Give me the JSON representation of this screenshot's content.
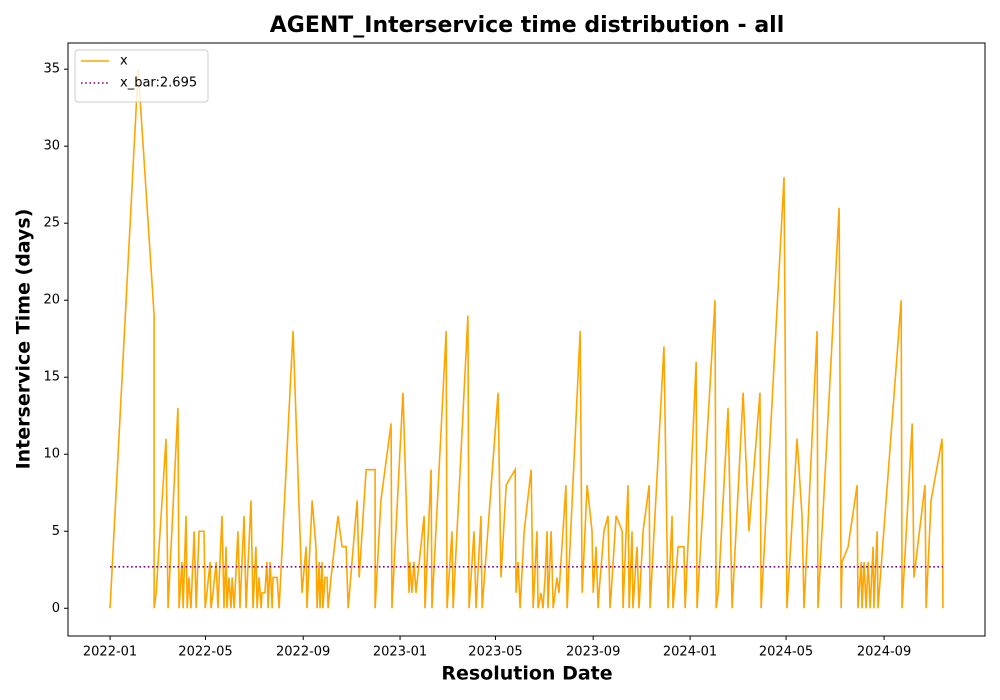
{
  "chart_data": {
    "type": "line",
    "title": "AGENT_Interservice time distribution - all",
    "x_label": "Resolution Date",
    "y_label": "Interservice Time (days)",
    "xlim": [
      2021.855,
      2025.017
    ],
    "ylim": [
      -1.8,
      36.7
    ],
    "xticks": [
      {
        "value": 2022.0,
        "label": "2022-01"
      },
      {
        "value": 2022.329,
        "label": "2022-05"
      },
      {
        "value": 2022.666,
        "label": "2022-09"
      },
      {
        "value": 2023.0,
        "label": "2023-01"
      },
      {
        "value": 2023.329,
        "label": "2023-05"
      },
      {
        "value": 2023.666,
        "label": "2023-09"
      },
      {
        "value": 2024.0,
        "label": "2024-01"
      },
      {
        "value": 2024.331,
        "label": "2024-05"
      },
      {
        "value": 2024.669,
        "label": "2024-09"
      }
    ],
    "yticks": [
      0,
      5,
      10,
      15,
      20,
      25,
      30,
      35
    ],
    "legend": "upper left",
    "series": [
      {
        "name": "x",
        "color": "#ffa500",
        "style": "solid",
        "x": [
          2022.0,
          2022.097,
          2022.152,
          2022.152,
          2022.159,
          2022.193,
          2022.2,
          2022.234,
          2022.238,
          2022.248,
          2022.252,
          2022.262,
          2022.266,
          2022.272,
          2022.279,
          2022.29,
          2022.297,
          2022.307,
          2022.324,
          2022.328,
          2022.334,
          2022.345,
          2022.348,
          2022.355,
          2022.366,
          2022.372,
          2022.386,
          2022.393,
          2022.4,
          2022.403,
          2022.41,
          2022.417,
          2022.421,
          2022.428,
          2022.441,
          2022.448,
          2022.462,
          2022.469,
          2022.486,
          2022.493,
          2022.503,
          2022.507,
          2022.514,
          2022.521,
          2022.524,
          2022.534,
          2022.541,
          2022.545,
          2022.552,
          2022.559,
          2022.562,
          2022.576,
          2022.583,
          2022.631,
          2022.662,
          2022.676,
          2022.679,
          2022.697,
          2022.71,
          2022.714,
          2022.721,
          2022.724,
          2022.731,
          2022.734,
          2022.741,
          2022.748,
          2022.752,
          2022.762,
          2022.786,
          2022.8,
          2022.814,
          2022.821,
          2022.852,
          2022.859,
          2022.883,
          2022.914,
          2022.914,
          2022.934,
          2022.969,
          2022.972,
          2023.01,
          2023.031,
          2023.034,
          2023.041,
          2023.048,
          2023.055,
          2023.066,
          2023.083,
          2023.086,
          2023.107,
          2023.11,
          2023.159,
          2023.162,
          2023.179,
          2023.183,
          2023.234,
          2023.238,
          2023.255,
          2023.262,
          2023.279,
          2023.283,
          2023.338,
          2023.348,
          2023.366,
          2023.397,
          2023.4,
          2023.407,
          2023.414,
          2023.428,
          2023.452,
          2023.459,
          2023.472,
          2023.476,
          2023.486,
          2023.493,
          2023.5,
          2023.507,
          2023.51,
          2023.521,
          2023.528,
          2023.541,
          2023.548,
          2023.572,
          2023.576,
          2023.621,
          2023.628,
          2023.645,
          2023.662,
          2023.666,
          2023.676,
          2023.683,
          2023.686,
          2023.703,
          2023.717,
          2023.724,
          2023.728,
          2023.745,
          2023.766,
          2023.769,
          2023.786,
          2023.79,
          2023.8,
          2023.803,
          2023.817,
          2023.824,
          2023.838,
          2023.859,
          2023.862,
          2023.91,
          2023.924,
          2023.938,
          2023.941,
          2023.959,
          2023.979,
          2023.983,
          2024.021,
          2024.024,
          2024.086,
          2024.09,
          2024.097,
          2024.131,
          2024.145,
          2024.183,
          2024.203,
          2024.241,
          2024.245,
          2024.324,
          2024.334,
          2024.369,
          2024.386,
          2024.393,
          2024.438,
          2024.441,
          2024.514,
          2024.521,
          2024.524,
          2024.545,
          2024.576,
          2024.579,
          2024.59,
          2024.593,
          2024.6,
          2024.607,
          2024.614,
          2024.621,
          2024.631,
          2024.634,
          2024.645,
          2024.648,
          2024.728,
          2024.731,
          2024.766,
          2024.772,
          2024.81,
          2024.814,
          2024.831,
          2024.869,
          2024.872
        ],
        "values": [
          0,
          35,
          19,
          0,
          1,
          11,
          0,
          13,
          0,
          3,
          0,
          6,
          0,
          2,
          0,
          5,
          0,
          5,
          5,
          0,
          1,
          3,
          0,
          1,
          3,
          0,
          6,
          0,
          4,
          0,
          2,
          0,
          2,
          0,
          5,
          0,
          6,
          0,
          7,
          0,
          4,
          0,
          2,
          0,
          1,
          1,
          3,
          0,
          3,
          0,
          2,
          2,
          0,
          18,
          1,
          4,
          0,
          7,
          4,
          0,
          3,
          0,
          3,
          0,
          2,
          2,
          0,
          2,
          6,
          4,
          4,
          0,
          7,
          2,
          9,
          9,
          0,
          7,
          12,
          0,
          14,
          1,
          3,
          1,
          3,
          1,
          3,
          6,
          0,
          9,
          0,
          18,
          0,
          5,
          0,
          19,
          0,
          5,
          0,
          6,
          0,
          14,
          2,
          8,
          9,
          1,
          3,
          0,
          5,
          9,
          0,
          5,
          0,
          1,
          0,
          2,
          5,
          0,
          5,
          0,
          2,
          1,
          8,
          0,
          18,
          1,
          8,
          5,
          1,
          4,
          0,
          1,
          5,
          6,
          0,
          1,
          6,
          5,
          0,
          8,
          0,
          5,
          0,
          4,
          0,
          5,
          8,
          0,
          17,
          0,
          6,
          0,
          4,
          4,
          0,
          16,
          0,
          20,
          0,
          1,
          13,
          0,
          14,
          5,
          14,
          0,
          28,
          0,
          11,
          6,
          0,
          18,
          0,
          26,
          0,
          3,
          4,
          8,
          0,
          3,
          0,
          3,
          0,
          3,
          0,
          4,
          0,
          5,
          0,
          20,
          0,
          12,
          2,
          8,
          0,
          7,
          11,
          0
        ]
      },
      {
        "name": "x_bar:2.695",
        "color": "#800080",
        "style": "dotted",
        "x": [
          2022.0,
          2024.872
        ],
        "values": [
          2.695,
          2.695
        ]
      }
    ]
  }
}
